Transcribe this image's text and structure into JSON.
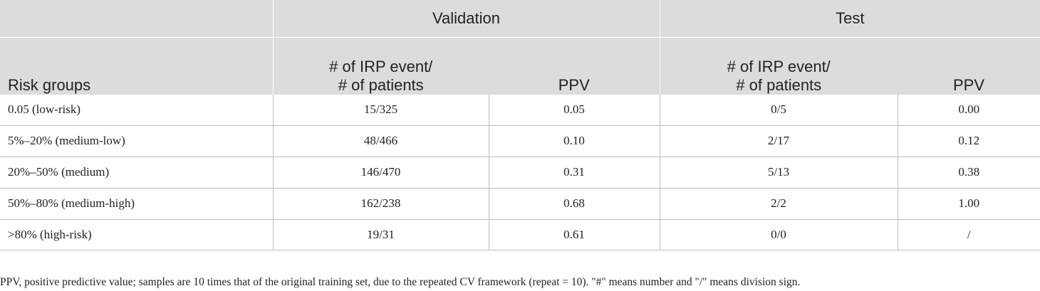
{
  "table": {
    "header": {
      "validation": "Validation",
      "test": "Test",
      "risk_groups": "Risk groups",
      "events_line1": "# of IRP event/",
      "events_line2": "# of patients",
      "ppv": "PPV"
    },
    "rows": [
      {
        "group": "0.05 (low-risk)",
        "val_events": "15/325",
        "val_ppv": "0.05",
        "test_events": "0/5",
        "test_ppv": "0.00"
      },
      {
        "group": "5%–20% (medium-low)",
        "val_events": "48/466",
        "val_ppv": "0.10",
        "test_events": "2/17",
        "test_ppv": "0.12"
      },
      {
        "group": "20%–50% (medium)",
        "val_events": "146/470",
        "val_ppv": "0.31",
        "test_events": "5/13",
        "test_ppv": "0.38"
      },
      {
        "group": "50%–80% (medium-high)",
        "val_events": "162/238",
        "val_ppv": "0.68",
        "test_events": "2/2",
        "test_ppv": "1.00"
      },
      {
        "group": ">80% (high-risk)",
        "val_events": "19/31",
        "val_ppv": "0.61",
        "test_events": "0/0",
        "test_ppv": "/"
      }
    ]
  },
  "footnote": "PPV, positive predictive value; samples are 10 times that of the original training set, due to the repeated CV framework (repeat = 10).  \"#\" means number and \"/\" means division sign."
}
